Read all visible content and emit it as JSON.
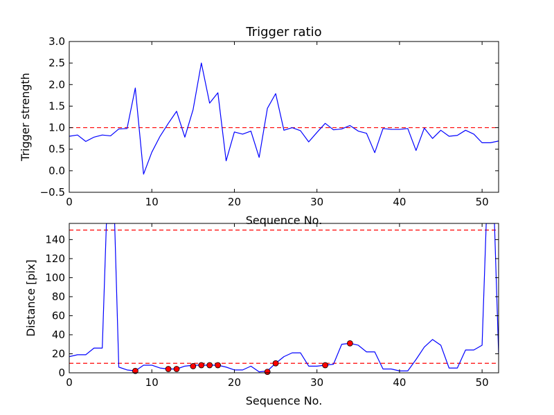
{
  "chart_data": [
    {
      "type": "line",
      "title": "Trigger ratio",
      "xlabel": "Sequence No.",
      "ylabel": "Trigger strength",
      "xlim": [
        0,
        52
      ],
      "ylim": [
        -0.5,
        3.0
      ],
      "xticks": [
        0,
        10,
        20,
        30,
        40,
        50
      ],
      "yticks": [
        -0.5,
        0.0,
        0.5,
        1.0,
        1.5,
        2.0,
        2.5,
        3.0
      ],
      "xtick_labels": [
        "0",
        "10",
        "20",
        "30",
        "40",
        "50"
      ],
      "ytick_labels": [
        "−0.5",
        "0.0",
        "0.5",
        "1.0",
        "1.5",
        "2.0",
        "2.5",
        "3.0"
      ],
      "grid": false,
      "line_color": "#0000ff",
      "threshold_color": "#ff0000",
      "series": [
        {
          "x": [
            0,
            1,
            2,
            3,
            4,
            5,
            6,
            7,
            8,
            9,
            10,
            11,
            12,
            13,
            14,
            15,
            16,
            17,
            18,
            19,
            20,
            21,
            22,
            23,
            24,
            25,
            26,
            27,
            28,
            29,
            30,
            31,
            32,
            33,
            34,
            35,
            36,
            37,
            38,
            39,
            40,
            41,
            42,
            43,
            44,
            45,
            46,
            47,
            48,
            49,
            50,
            51,
            52
          ],
          "values": [
            0.8,
            0.83,
            0.68,
            0.78,
            0.83,
            0.81,
            0.97,
            0.98,
            1.92,
            -0.08,
            0.43,
            0.8,
            1.1,
            1.38,
            0.78,
            1.42,
            2.5,
            1.57,
            1.81,
            0.23,
            0.9,
            0.85,
            0.92,
            0.31,
            1.45,
            1.79,
            0.94,
            1.0,
            0.93,
            0.67,
            0.89,
            1.1,
            0.95,
            0.97,
            1.05,
            0.92,
            0.87,
            0.42,
            0.98,
            0.96,
            0.96,
            0.98,
            0.47,
            0.99,
            0.75,
            0.94,
            0.8,
            0.82,
            0.94,
            0.85,
            0.65,
            0.65,
            0.69
          ]
        }
      ],
      "threshold": 1.0
    },
    {
      "type": "line",
      "title": "",
      "xlabel": "Sequence No.",
      "ylabel": "Distance [pix]",
      "xlim": [
        0,
        52
      ],
      "ylim": [
        0,
        157
      ],
      "xticks": [
        0,
        10,
        20,
        30,
        40,
        50
      ],
      "yticks": [
        0,
        20,
        40,
        60,
        80,
        100,
        120,
        140
      ],
      "xtick_labels": [
        "0",
        "10",
        "20",
        "30",
        "40",
        "50"
      ],
      "ytick_labels": [
        "0",
        "20",
        "40",
        "60",
        "80",
        "100",
        "120",
        "140"
      ],
      "grid": false,
      "line_color": "#0000ff",
      "threshold_color": "#ff0000",
      "marker_color": "#ff0000",
      "series": [
        {
          "x": [
            0,
            1,
            2,
            3,
            4,
            4.5,
            5.5,
            6,
            7,
            8,
            9,
            10,
            11,
            12,
            13,
            14,
            15,
            16,
            17,
            18,
            19,
            20,
            21,
            22,
            23,
            24,
            25,
            26,
            27,
            28,
            29,
            30,
            31,
            32,
            33,
            34,
            35,
            36,
            37,
            38,
            39,
            40,
            41,
            42,
            43,
            44,
            45,
            46,
            47,
            48,
            49,
            50,
            50.5,
            51.5,
            52
          ],
          "values": [
            17,
            19,
            19,
            26,
            26,
            157,
            157,
            6,
            3,
            2,
            8,
            8,
            5,
            4,
            4,
            7,
            8,
            8,
            8,
            8,
            6,
            3,
            3,
            7,
            1,
            2,
            10,
            17,
            21,
            21,
            7,
            7,
            8,
            9,
            30,
            31,
            29,
            22,
            22,
            4,
            4,
            2,
            2,
            14,
            27,
            35,
            29,
            5,
            5,
            24,
            24,
            29,
            157,
            157,
            20
          ]
        }
      ],
      "markers": {
        "x": [
          8,
          12,
          13,
          15,
          16,
          17,
          18,
          24,
          25,
          31,
          34
        ],
        "values": [
          2,
          4,
          4,
          7,
          8,
          8,
          8,
          1,
          10,
          8,
          31
        ]
      },
      "thresholds": [
        10,
        150
      ]
    }
  ]
}
